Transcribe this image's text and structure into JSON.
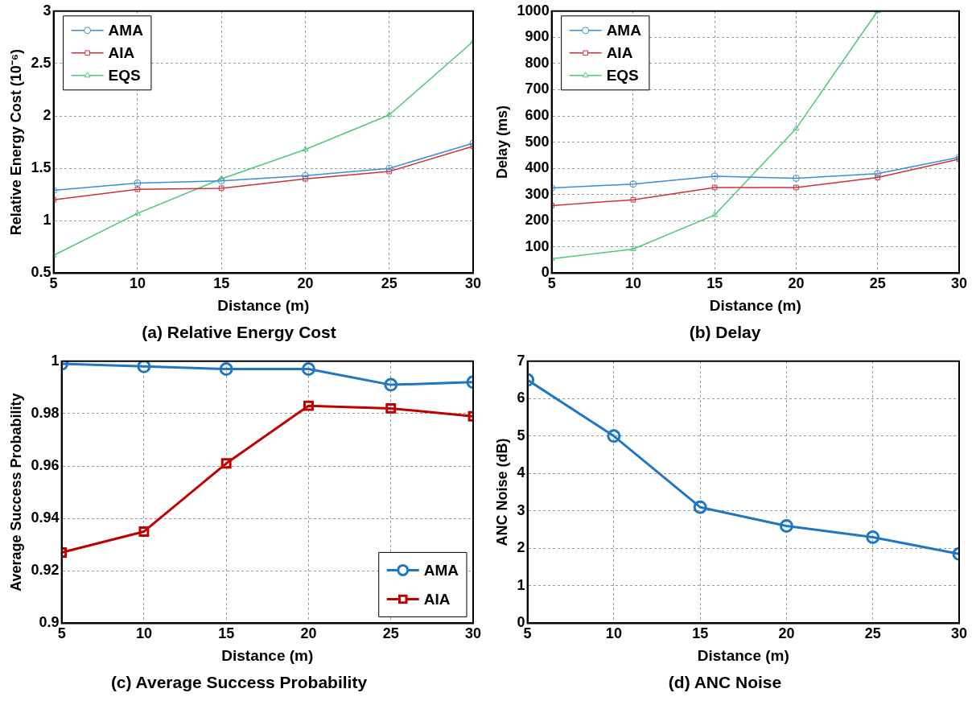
{
  "chart_data": [
    {
      "type": "line",
      "title": "(a) Relative Energy Cost",
      "xlabel": "Distance (m)",
      "ylabel": "Relative Energy Cost (10⁻⁶)",
      "x": [
        5,
        10,
        15,
        20,
        25,
        30
      ],
      "xlim": [
        5,
        30
      ],
      "xticks": [
        5,
        10,
        15,
        20,
        25,
        30
      ],
      "ylim": [
        0.5,
        3
      ],
      "yticks": [
        0.5,
        1,
        1.5,
        2,
        2.5,
        3
      ],
      "grid": true,
      "legend": "top left",
      "line_style": "solid",
      "series": [
        {
          "name": "AMA",
          "color": "#3b8ed8",
          "marker": "circle",
          "values": [
            1.29,
            1.36,
            1.38,
            1.43,
            1.5,
            1.74
          ]
        },
        {
          "name": "AIA",
          "color": "#d0303a",
          "marker": "square",
          "values": [
            1.2,
            1.3,
            1.31,
            1.4,
            1.47,
            1.71
          ]
        },
        {
          "name": "EQS",
          "color": "#4ec97a",
          "marker": "triangle",
          "values": [
            0.67,
            1.07,
            1.4,
            1.68,
            2.01,
            2.71
          ]
        }
      ]
    },
    {
      "type": "line",
      "title": "(b) Delay",
      "xlabel": "Distance (m)",
      "ylabel": "Delay (ms)",
      "x": [
        5,
        10,
        15,
        20,
        25,
        30
      ],
      "xlim": [
        5,
        30
      ],
      "xticks": [
        5,
        10,
        15,
        20,
        25,
        30
      ],
      "ylim": [
        0,
        1000
      ],
      "yticks": [
        0,
        100,
        200,
        300,
        400,
        500,
        600,
        700,
        800,
        900,
        1000
      ],
      "grid": true,
      "legend": "top left",
      "line_style": "solid",
      "series": [
        {
          "name": "AMA",
          "color": "#3b8ed8",
          "marker": "circle",
          "values": [
            325,
            340,
            370,
            362,
            380,
            442
          ]
        },
        {
          "name": "AIA",
          "color": "#d0303a",
          "marker": "square",
          "values": [
            258,
            280,
            327,
            327,
            365,
            435
          ]
        },
        {
          "name": "EQS",
          "color": "#4ec97a",
          "marker": "triangle",
          "values": [
            55,
            92,
            222,
            552,
            1000,
            null
          ]
        }
      ]
    },
    {
      "type": "line",
      "title": "(c) Average Success Probability",
      "xlabel": "Distance (m)",
      "ylabel": "Average Success Probability",
      "x": [
        5,
        10,
        15,
        20,
        25,
        30
      ],
      "xlim": [
        5,
        30
      ],
      "xticks": [
        5,
        10,
        15,
        20,
        25,
        30
      ],
      "ylim": [
        0.9,
        1
      ],
      "yticks": [
        {
          "value": 0.9,
          "label": "0.9"
        },
        {
          "value": 0.92,
          "label": "0.92"
        },
        {
          "value": 0.94,
          "label": "0.94"
        },
        {
          "value": 0.96,
          "label": "0.96"
        },
        {
          "value": 0.98,
          "label": "0.98"
        },
        {
          "value": 1,
          "label": "1"
        }
      ],
      "grid": true,
      "legend": "bottom right",
      "line_style": "solid",
      "series": [
        {
          "name": "AMA",
          "color": "#1f77c4",
          "marker": "circle",
          "values": [
            0.999,
            0.998,
            0.997,
            0.997,
            0.991,
            0.992
          ]
        },
        {
          "name": "AIA",
          "color": "#c00000",
          "marker": "square",
          "values": [
            0.927,
            0.935,
            0.961,
            0.983,
            0.982,
            0.979
          ]
        }
      ]
    },
    {
      "type": "line",
      "title": "(d) ANC Noise",
      "xlabel": "Distance (m)",
      "ylabel": "ANC Noise (dB)",
      "x": [
        5,
        10,
        15,
        20,
        25,
        30
      ],
      "xlim": [
        5,
        30
      ],
      "xticks": [
        5,
        10,
        15,
        20,
        25,
        30
      ],
      "ylim": [
        0,
        7
      ],
      "yticks": [
        0,
        1,
        2,
        3,
        4,
        5,
        6,
        7
      ],
      "grid": true,
      "line_style": "solid",
      "series": [
        {
          "color": "#1f77c4",
          "marker": "circle",
          "values": [
            6.5,
            5.0,
            3.1,
            2.6,
            2.3,
            1.85
          ]
        }
      ]
    }
  ]
}
